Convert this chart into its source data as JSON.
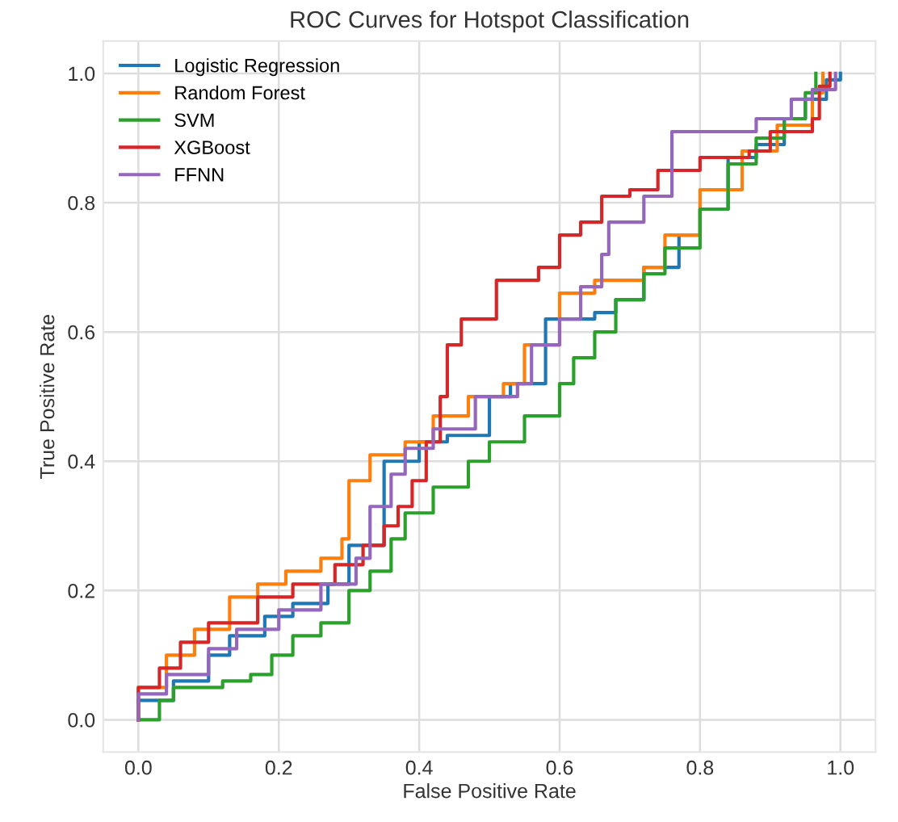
{
  "chart_data": {
    "type": "step",
    "title": "ROC Curves for Hotspot Classification",
    "xlabel": "False Positive Rate",
    "ylabel": "True Positive Rate",
    "xlim": [
      -0.05,
      1.05
    ],
    "ylim": [
      -0.05,
      1.05
    ],
    "xticks": [
      {
        "value": 0,
        "label": "0.0"
      },
      {
        "value": 0.2,
        "label": "0.2"
      },
      {
        "value": 0.4,
        "label": "0.4"
      },
      {
        "value": 0.6,
        "label": "0.6"
      },
      {
        "value": 0.8,
        "label": "0.8"
      },
      {
        "value": 1,
        "label": "1.0"
      }
    ],
    "yticks": [
      {
        "value": 0,
        "label": "0.0"
      },
      {
        "value": 0.2,
        "label": "0.2"
      },
      {
        "value": 0.4,
        "label": "0.4"
      },
      {
        "value": 0.6,
        "label": "0.6"
      },
      {
        "value": 0.8,
        "label": "0.8"
      },
      {
        "value": 1,
        "label": "1.0"
      }
    ],
    "grid": true,
    "legend": "top left",
    "series": [
      {
        "name": "Logistic Regression",
        "color": "#1f77b4",
        "x": [
          0,
          0,
          0.05,
          0.1,
          0.13,
          0.18,
          0.22,
          0.27,
          0.3,
          0.35,
          0.4,
          0.44,
          0.5,
          0.53,
          0.58,
          0.65,
          0.68,
          0.72,
          0.77,
          0.8,
          0.84,
          0.88,
          0.92,
          0.95,
          0.98,
          1.0
        ],
        "values": [
          0,
          0.03,
          0.06,
          0.1,
          0.13,
          0.16,
          0.18,
          0.21,
          0.27,
          0.4,
          0.43,
          0.44,
          0.5,
          0.52,
          0.62,
          0.63,
          0.65,
          0.7,
          0.75,
          0.79,
          0.87,
          0.89,
          0.93,
          0.96,
          0.99,
          1.0
        ]
      },
      {
        "name": "Random Forest",
        "color": "#ff7f0e",
        "x": [
          0,
          0,
          0.04,
          0.08,
          0.13,
          0.17,
          0.21,
          0.26,
          0.29,
          0.3,
          0.33,
          0.38,
          0.42,
          0.47,
          0.52,
          0.55,
          0.6,
          0.65,
          0.72,
          0.75,
          0.8,
          0.86,
          0.91,
          0.96,
          0.975
        ],
        "values": [
          0,
          0.05,
          0.1,
          0.14,
          0.19,
          0.21,
          0.23,
          0.25,
          0.28,
          0.37,
          0.41,
          0.43,
          0.47,
          0.5,
          0.52,
          0.58,
          0.66,
          0.68,
          0.7,
          0.75,
          0.82,
          0.88,
          0.92,
          0.97,
          1.0
        ]
      },
      {
        "name": "SVM",
        "color": "#2ca02c",
        "x": [
          0,
          0.03,
          0.05,
          0.12,
          0.16,
          0.19,
          0.22,
          0.26,
          0.3,
          0.33,
          0.36,
          0.38,
          0.42,
          0.47,
          0.5,
          0.55,
          0.6,
          0.62,
          0.65,
          0.68,
          0.72,
          0.75,
          0.8,
          0.84,
          0.88,
          0.92,
          0.95,
          0.965
        ],
        "values": [
          0,
          0.03,
          0.05,
          0.06,
          0.07,
          0.1,
          0.13,
          0.15,
          0.2,
          0.23,
          0.28,
          0.32,
          0.36,
          0.4,
          0.43,
          0.47,
          0.52,
          0.56,
          0.6,
          0.65,
          0.69,
          0.73,
          0.79,
          0.86,
          0.9,
          0.93,
          0.97,
          1.0
        ]
      },
      {
        "name": "XGBoost",
        "color": "#d62728",
        "x": [
          0,
          0,
          0.03,
          0.06,
          0.1,
          0.17,
          0.22,
          0.28,
          0.32,
          0.35,
          0.37,
          0.39,
          0.41,
          0.43,
          0.44,
          0.46,
          0.51,
          0.57,
          0.6,
          0.63,
          0.66,
          0.7,
          0.74,
          0.8,
          0.87,
          0.9,
          0.96,
          0.97,
          0.985
        ],
        "values": [
          0,
          0.05,
          0.08,
          0.12,
          0.15,
          0.19,
          0.21,
          0.24,
          0.27,
          0.3,
          0.33,
          0.37,
          0.43,
          0.5,
          0.58,
          0.62,
          0.68,
          0.7,
          0.75,
          0.77,
          0.81,
          0.82,
          0.85,
          0.87,
          0.88,
          0.91,
          0.93,
          0.98,
          1.0
        ]
      },
      {
        "name": "FFNN",
        "color": "#9467bd",
        "x": [
          0,
          0,
          0.04,
          0.1,
          0.14,
          0.2,
          0.26,
          0.31,
          0.33,
          0.36,
          0.38,
          0.42,
          0.48,
          0.54,
          0.56,
          0.6,
          0.63,
          0.66,
          0.67,
          0.72,
          0.76,
          0.86,
          0.88,
          0.93,
          0.96,
          0.993
        ],
        "values": [
          0,
          0.04,
          0.07,
          0.11,
          0.14,
          0.17,
          0.21,
          0.25,
          0.33,
          0.38,
          0.42,
          0.45,
          0.5,
          0.52,
          0.58,
          0.62,
          0.67,
          0.72,
          0.77,
          0.81,
          0.91,
          0.91,
          0.93,
          0.96,
          0.975,
          1.0
        ]
      }
    ]
  }
}
